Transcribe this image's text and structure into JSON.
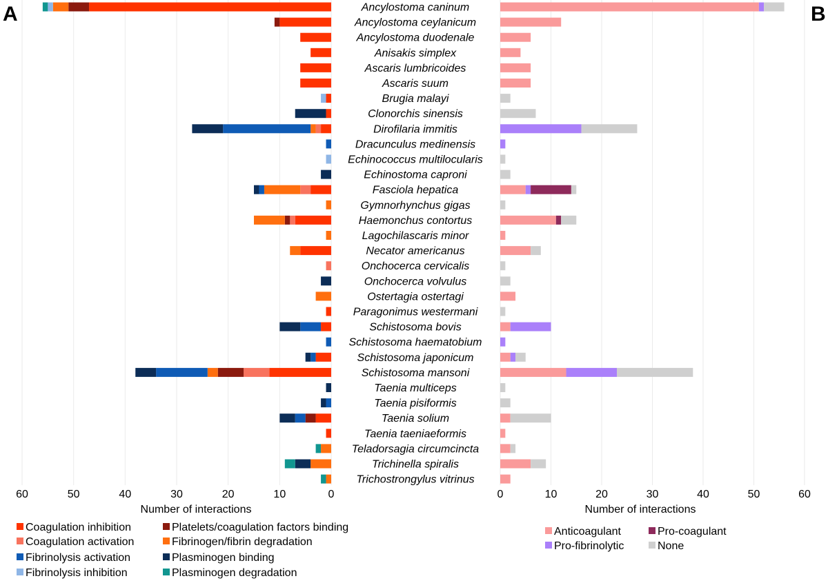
{
  "chart_data": {
    "type": "bar",
    "orientation": "horizontal-stacked",
    "categories": [
      "Ancylostoma caninum",
      "Ancylostoma ceylanicum",
      "Ancylostoma duodenale",
      "Anisakis simplex",
      "Ascaris lumbricoides",
      "Ascaris suum",
      "Brugia malayi",
      "Clonorchis sinensis",
      "Dirofilaria immitis",
      "Dracunculus medinensis",
      "Echinococcus multilocularis",
      "Echinostoma caproni",
      "Fasciola hepatica",
      "Gymnorhynchus gigas",
      "Haemonchus contortus",
      "Lagochilascaris minor",
      "Necator americanus",
      "Onchocerca cervicalis",
      "Onchocerca volvulus",
      "Ostertagia ostertagi",
      "Paragonimus westermani",
      "Schistosoma bovis",
      "Schistosoma haematobium",
      "Schistosoma japonicum",
      "Schistosoma mansoni",
      "Taenia multiceps",
      "Taenia pisiformis",
      "Taenia solium",
      "Taenia taeniaeformis",
      "Teladorsagia circumcincta",
      "Trichinella spiralis",
      "Trichostrongylus vitrinus"
    ],
    "panel_a": {
      "label": "A",
      "xlabel": "Number of interactions",
      "xlim": [
        0,
        60
      ],
      "ticks": [
        "60",
        "50",
        "40",
        "30",
        "20",
        "10",
        "0"
      ],
      "direction": "leftward",
      "series": [
        {
          "name": "Coagulation inhibition",
          "color": "#FF3300",
          "values": [
            47,
            10,
            6,
            4,
            6,
            6,
            1,
            1,
            2,
            0,
            0,
            0,
            4,
            0,
            7,
            0,
            6,
            0,
            0,
            0,
            1,
            2,
            0,
            3,
            12,
            0,
            0,
            3,
            1,
            0,
            0,
            0
          ]
        },
        {
          "name": "Coagulation activation",
          "color": "#F8735E",
          "values": [
            0,
            0,
            0,
            0,
            0,
            0,
            0,
            0,
            1,
            0,
            0,
            0,
            2,
            0,
            1,
            0,
            0,
            1,
            0,
            0,
            0,
            0,
            0,
            0,
            5,
            0,
            0,
            0,
            0,
            0,
            0,
            0
          ]
        },
        {
          "name": "Platelets/coagulation factors binding",
          "color": "#8B1A0E",
          "values": [
            4,
            1,
            0,
            0,
            0,
            0,
            0,
            0,
            0,
            0,
            0,
            0,
            0,
            0,
            1,
            0,
            0,
            0,
            0,
            0,
            0,
            0,
            0,
            0,
            5,
            0,
            0,
            2,
            0,
            0,
            0,
            0
          ]
        },
        {
          "name": "Fibrinogen/fibrin degradation",
          "color": "#FF6F0F",
          "values": [
            3,
            0,
            0,
            0,
            0,
            0,
            0,
            0,
            1,
            0,
            0,
            0,
            7,
            1,
            6,
            1,
            2,
            0,
            0,
            3,
            0,
            0,
            0,
            0,
            2,
            0,
            0,
            0,
            0,
            2,
            4,
            1
          ]
        },
        {
          "name": "Fibrinolysis activation",
          "color": "#0F5BB5",
          "values": [
            0,
            0,
            0,
            0,
            0,
            0,
            0,
            0,
            17,
            1,
            0,
            0,
            1,
            0,
            0,
            0,
            0,
            0,
            0,
            0,
            0,
            4,
            1,
            1,
            10,
            0,
            1,
            2,
            0,
            0,
            0,
            0
          ]
        },
        {
          "name": "Plasminogen binding",
          "color": "#0C2D57",
          "values": [
            0,
            0,
            0,
            0,
            0,
            0,
            0,
            6,
            6,
            0,
            0,
            2,
            1,
            0,
            0,
            0,
            0,
            0,
            2,
            0,
            0,
            4,
            0,
            1,
            4,
            1,
            1,
            3,
            0,
            0,
            3,
            0
          ]
        },
        {
          "name": "Fibrinolysis inhibition",
          "color": "#8FB6E6",
          "values": [
            1,
            0,
            0,
            0,
            0,
            0,
            1,
            0,
            0,
            0,
            1,
            0,
            0,
            0,
            0,
            0,
            0,
            0,
            0,
            0,
            0,
            0,
            0,
            0,
            0,
            0,
            0,
            0,
            0,
            0,
            0,
            0
          ]
        },
        {
          "name": "Plasminogen degradation",
          "color": "#119690",
          "values": [
            1,
            0,
            0,
            0,
            0,
            0,
            0,
            0,
            0,
            0,
            0,
            0,
            0,
            0,
            0,
            0,
            0,
            0,
            0,
            0,
            0,
            0,
            0,
            0,
            0,
            0,
            0,
            0,
            0,
            1,
            2,
            1
          ]
        }
      ],
      "legend_order": [
        "Coagulation inhibition",
        "Coagulation activation",
        "Fibrinolysis activation",
        "Fibrinolysis inhibition",
        "Platelets/coagulation factors binding",
        "Fibrinogen/fibrin degradation",
        "Plasminogen binding",
        "Plasminogen degradation"
      ]
    },
    "panel_b": {
      "label": "B",
      "xlabel": "Number of interactions",
      "xlim": [
        0,
        60
      ],
      "ticks": [
        "0",
        "10",
        "20",
        "30",
        "40",
        "50",
        "60"
      ],
      "direction": "rightward",
      "series": [
        {
          "name": "Anticoagulant",
          "color": "#FA9A9A",
          "values": [
            51,
            12,
            6,
            4,
            6,
            6,
            0,
            0,
            0,
            0,
            0,
            0,
            5,
            0,
            11,
            1,
            6,
            0,
            0,
            3,
            0,
            2,
            0,
            2,
            13,
            0,
            0,
            2,
            1,
            2,
            6,
            2
          ]
        },
        {
          "name": "Pro-fibrinolytic",
          "color": "#AA80FA",
          "values": [
            1,
            0,
            0,
            0,
            0,
            0,
            0,
            0,
            16,
            1,
            0,
            0,
            1,
            0,
            0,
            0,
            0,
            0,
            0,
            0,
            0,
            8,
            1,
            1,
            10,
            0,
            0,
            0,
            0,
            0,
            0,
            0
          ]
        },
        {
          "name": "Pro-coagulant",
          "color": "#8E2A5B",
          "values": [
            0,
            0,
            0,
            0,
            0,
            0,
            0,
            0,
            0,
            0,
            0,
            0,
            8,
            0,
            1,
            0,
            0,
            0,
            0,
            0,
            0,
            0,
            0,
            0,
            0,
            0,
            0,
            0,
            0,
            0,
            0,
            0
          ]
        },
        {
          "name": "None",
          "color": "#CFCFCF",
          "values": [
            4,
            0,
            0,
            0,
            0,
            0,
            2,
            7,
            11,
            0,
            1,
            2,
            1,
            1,
            3,
            0,
            2,
            1,
            2,
            0,
            1,
            0,
            0,
            2,
            15,
            1,
            2,
            8,
            0,
            1,
            3,
            0
          ]
        }
      ],
      "legend_order": [
        "Anticoagulant",
        "Pro-fibrinolytic",
        "Pro-coagulant",
        "None"
      ]
    }
  }
}
